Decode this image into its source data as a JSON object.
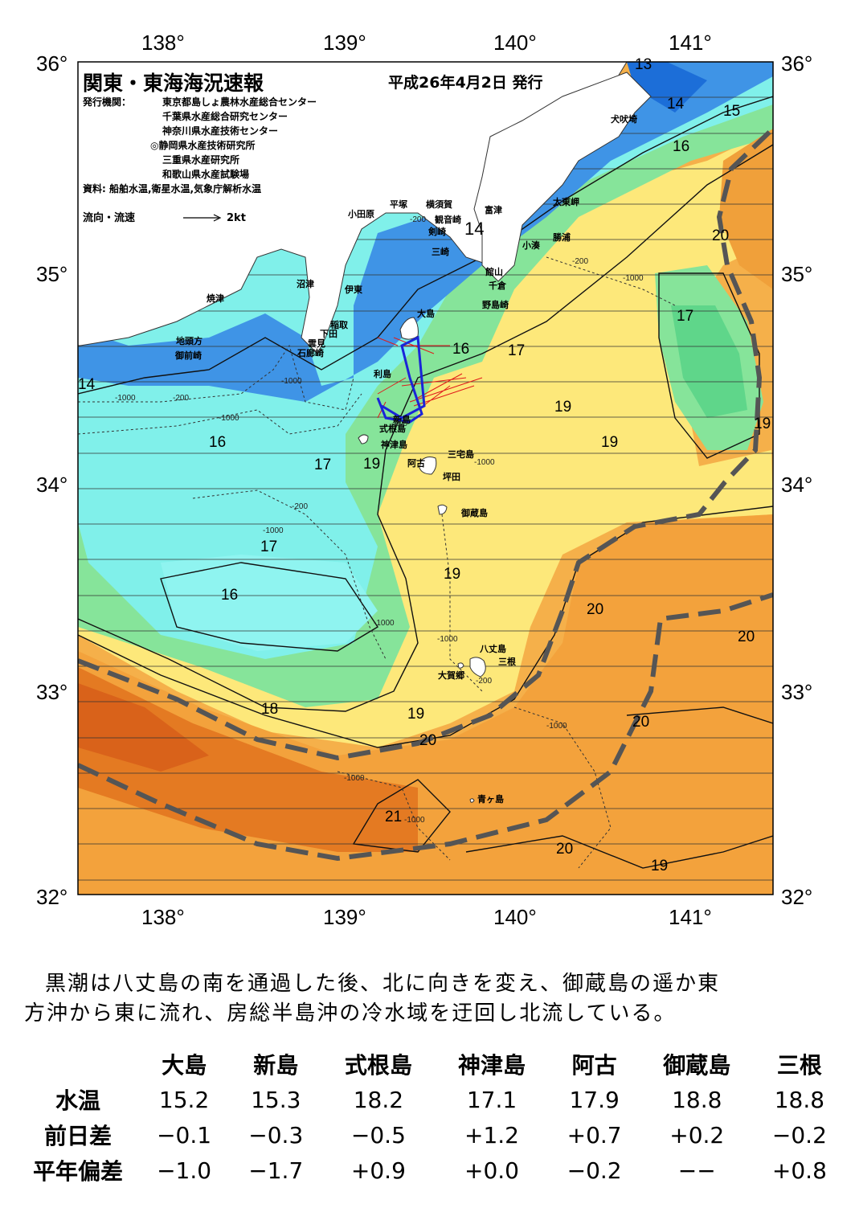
{
  "header": {
    "title": "関東・東海海況速報",
    "date": "平成26年4月2日 発行",
    "issuer_label": "発行機関：",
    "issuers": [
      "東京都島しょ農林水産総合センター",
      "千葉県水産総合研究センター",
      "神奈川県水産技術センター",
      "◎静岡県水産技術研究所",
      "三重県水産研究所",
      "和歌山県水産試験場"
    ],
    "sources": "資料: 船舶水温,衛星水温,気象庁解析水温",
    "flow_legend": "流向・流速",
    "flow_scale": "2kt"
  },
  "axes": {
    "lon_ticks": [
      "138°",
      "139°",
      "140°",
      "141°"
    ],
    "lat_ticks": [
      "36°",
      "35°",
      "34°",
      "33°",
      "32°"
    ]
  },
  "places": [
    "犬吠埼",
    "太東岬",
    "勝浦",
    "小湊",
    "富津",
    "館山",
    "千倉",
    "野島崎",
    "横須賀",
    "観音崎",
    "剣崎",
    "三崎",
    "平塚",
    "小田原",
    "沼津",
    "伊東",
    "稲取",
    "下田",
    "雲見",
    "石廊崎",
    "焼津",
    "地頭方",
    "御前崎",
    "大島",
    "利島",
    "新島",
    "式根島",
    "神津島",
    "三宅島",
    "阿古",
    "坪田",
    "御蔵島",
    "八丈島",
    "三根",
    "大賀郷",
    "青ヶ島"
  ],
  "isotherm_labels": [
    "13",
    "14",
    "15",
    "16",
    "14",
    "14",
    "20",
    "17",
    "16",
    "17",
    "19",
    "19",
    "19",
    "16",
    "17",
    "19",
    "17",
    "16",
    "19",
    "20",
    "20",
    "18",
    "19",
    "20",
    "20",
    "21",
    "20",
    "19"
  ],
  "depth_labels": [
    "-200",
    "-1000",
    "-200",
    "-1000",
    "-1000",
    "-200",
    "-1000",
    "-200",
    "-1000",
    "-1000",
    "-1000",
    "-1000",
    "-200",
    "-1000",
    "-1000",
    "-1000",
    "-200"
  ],
  "colors": {
    "cold_blue": "#2f7fe0",
    "cyan": "#7ff0ea",
    "green": "#74df8a",
    "yellow": "#fde87a",
    "orange": "#f3a23c",
    "deep_orange": "#e0701c",
    "kuroshio_axis": "#555555",
    "track": "#1a24d8",
    "current_vectors": "#e01a1a"
  },
  "summary": [
    "黒潮は八丈島の南を通過した後、北に向きを変え、御蔵島の遥か東",
    "方沖から東に流れ、房総半島沖の冷水域を迂回し北流している。"
  ],
  "table": {
    "columns": [
      "大島",
      "新島",
      "式根島",
      "神津島",
      "阿古",
      "御蔵島",
      "三根"
    ],
    "rows": [
      {
        "label": "水温",
        "values": [
          "15.2",
          "15.3",
          "18.2",
          "17.1",
          "17.9",
          "18.8",
          "18.8"
        ]
      },
      {
        "label": "前日差",
        "values": [
          "−0.1",
          "−0.3",
          "−0.5",
          "+1.2",
          "+0.7",
          "+0.2",
          "−0.2"
        ]
      },
      {
        "label": "平年偏差",
        "values": [
          "−1.0",
          "−1.7",
          "+0.9",
          "+0.0",
          "−0.2",
          "−−",
          "+0.8"
        ]
      }
    ]
  }
}
